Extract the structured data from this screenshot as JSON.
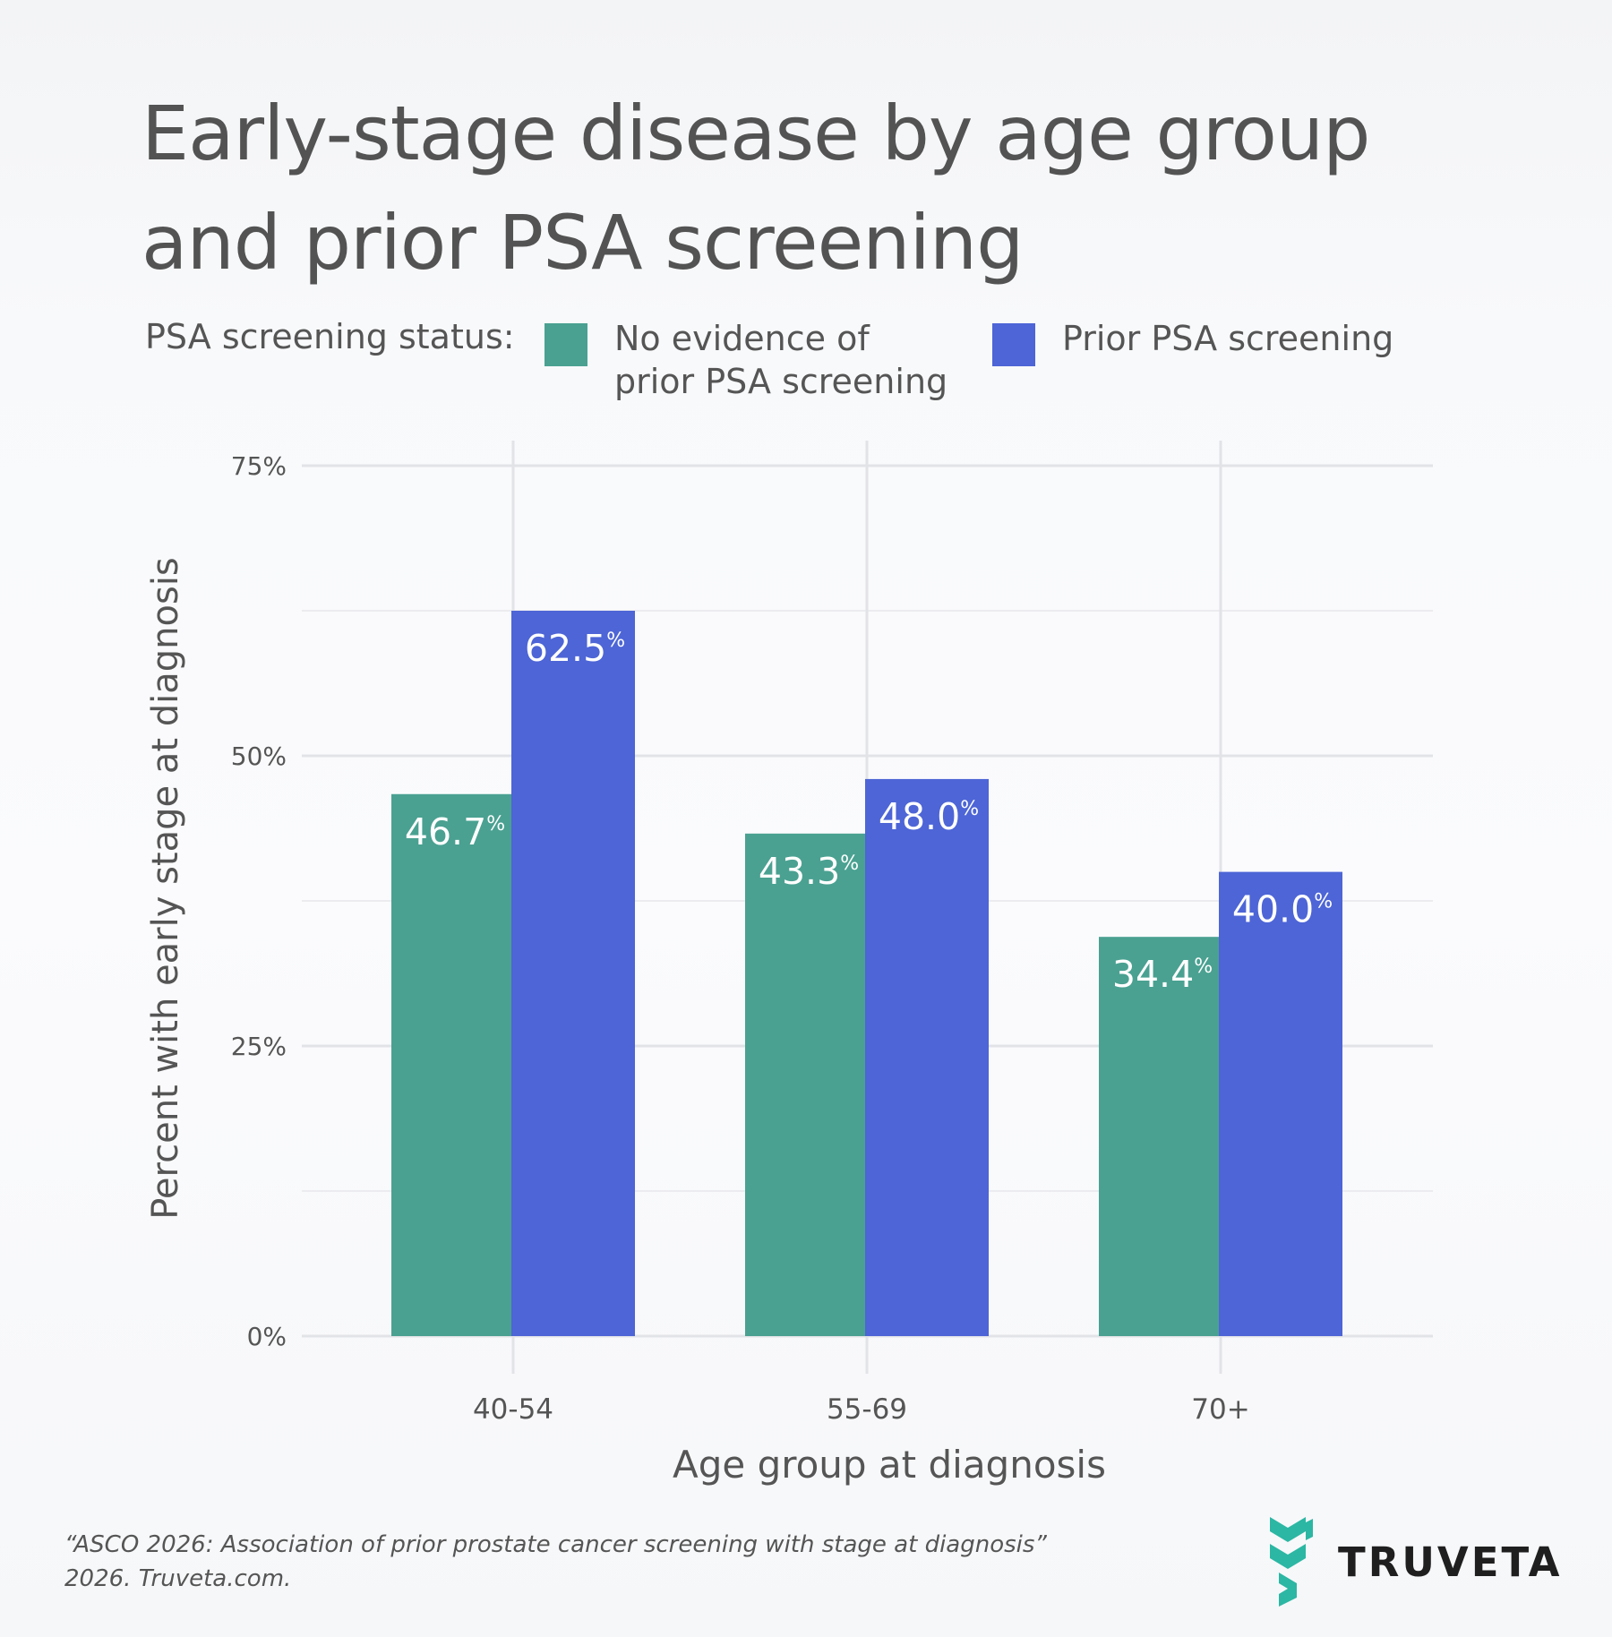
{
  "title_line1": "Early-stage disease by age group",
  "title_line2": "and prior PSA screening",
  "legend": {
    "label": "PSA screening status:",
    "items": [
      {
        "line1": "No evidence of",
        "line2": "prior PSA screening",
        "color": "#4aa191"
      },
      {
        "line1": "Prior PSA screening",
        "line2": "",
        "color": "#4d65d6"
      }
    ]
  },
  "chart_data": {
    "type": "bar",
    "categories": [
      "40-54",
      "55-69",
      "70+"
    ],
    "series": [
      {
        "name": "No evidence of prior PSA screening",
        "values": [
          46.7,
          43.3,
          34.4
        ],
        "color": "#4aa191"
      },
      {
        "name": "Prior PSA screening",
        "values": [
          62.5,
          48.0,
          40.0
        ],
        "color": "#4d65d6"
      }
    ],
    "data_labels": [
      [
        "46.7",
        "43.3",
        "34.4"
      ],
      [
        "62.5",
        "48.0",
        "40.0"
      ]
    ],
    "data_label_suffix": "%",
    "ylim": [
      0,
      75
    ],
    "yticks": [
      0,
      25,
      50,
      75
    ],
    "ytick_labels": [
      "0%",
      "25%",
      "50%",
      "75%"
    ],
    "xlabel": "Age group at diagnosis",
    "ylabel": "Percent with early stage at diagnosis",
    "grid": true,
    "legend_position": "top"
  },
  "footer": {
    "citation_line1": "“ASCO 2026: Association of prior prostate cancer screening with stage at diagnosis”",
    "citation_line2": "2026. Truveta.com.",
    "brand": "TRUVETA",
    "brand_color": "#2bb7a3"
  }
}
